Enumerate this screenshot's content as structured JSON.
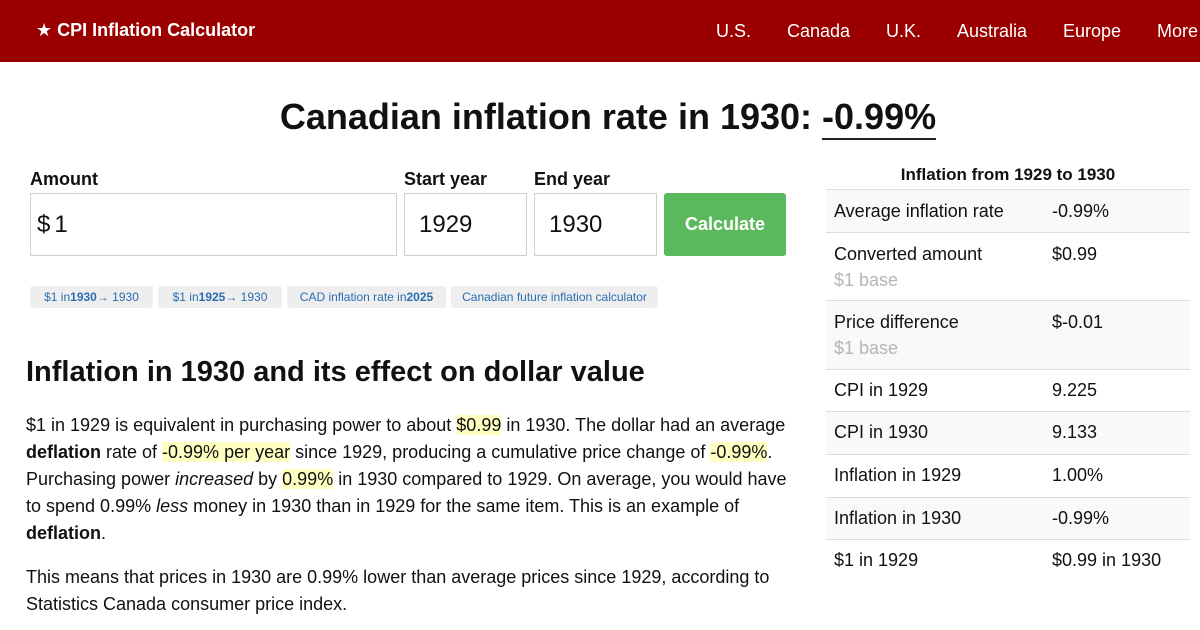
{
  "navbar": {
    "brand": "★ CPI Inflation Calculator",
    "links": [
      "U.S.",
      "Canada",
      "U.K.",
      "Australia",
      "Europe",
      "More"
    ]
  },
  "title": {
    "prefix": "Canadian inflation rate in 1930:",
    "rate": "-0.99%"
  },
  "form": {
    "amount_label": "Amount",
    "currency_symbol": "$",
    "amount_value": "1",
    "start_label": "Start year",
    "start_value": "1929",
    "end_label": "End year",
    "end_value": "1930",
    "calculate_label": "Calculate"
  },
  "chips": [
    {
      "pre": "$1 in ",
      "bold": "1930",
      "post": " → 1930"
    },
    {
      "pre": "$1 in ",
      "bold": "1925",
      "post": " → 1930"
    },
    {
      "pre": "CAD inflation rate in ",
      "bold": "2025",
      "post": ""
    },
    {
      "pre": "Canadian future inflation calculator",
      "bold": "",
      "post": ""
    }
  ],
  "article": {
    "heading": "Inflation in 1930 and its effect on dollar value",
    "p1": {
      "s1": "$1 in 1929 is equivalent in purchasing power to about ",
      "h1": "$0.99",
      "s2": " in 1930. The dollar had an average ",
      "b1": "deflation",
      "s3": " rate of ",
      "h2": "-0.99% per year",
      "s4": " since 1929, producing a cumulative price change of ",
      "h3": "-0.99%",
      "s5": ". Purchasing power ",
      "i1": "increased",
      "s6": " by ",
      "h4": "0.99%",
      "s7": " in 1930 compared to 1929. On average, you would have to spend 0.99% ",
      "i2": "less",
      "s8": " money in 1930 than in 1929 for the same item. This is an example of ",
      "b2": "deflation",
      "s9": "."
    },
    "p2": "This means that prices in 1930 are 0.99% lower than average prices since 1929, according to Statistics Canada consumer price index."
  },
  "sidebar": {
    "title": "Inflation from 1929 to 1930",
    "rows": [
      {
        "label": "Average inflation rate",
        "value": "-0.99%",
        "sub": ""
      },
      {
        "label": "Converted amount",
        "value": "$0.99",
        "sub": "$1 base"
      },
      {
        "label": "Price difference",
        "value": "$-0.01",
        "sub": "$1 base"
      },
      {
        "label": "CPI in 1929",
        "value": "9.225",
        "sub": ""
      },
      {
        "label": "CPI in 1930",
        "value": "9.133",
        "sub": ""
      },
      {
        "label": "Inflation in 1929",
        "value": "1.00%",
        "sub": ""
      },
      {
        "label": "Inflation in 1930",
        "value": "-0.99%",
        "sub": ""
      },
      {
        "label": "$1 in 1929",
        "value": "$0.99 in 1930",
        "sub": ""
      }
    ]
  },
  "colors": {
    "navbar": "#9b0000",
    "button": "#5cb85c",
    "link": "#2a6db0",
    "highlight": "#ffffc2"
  }
}
